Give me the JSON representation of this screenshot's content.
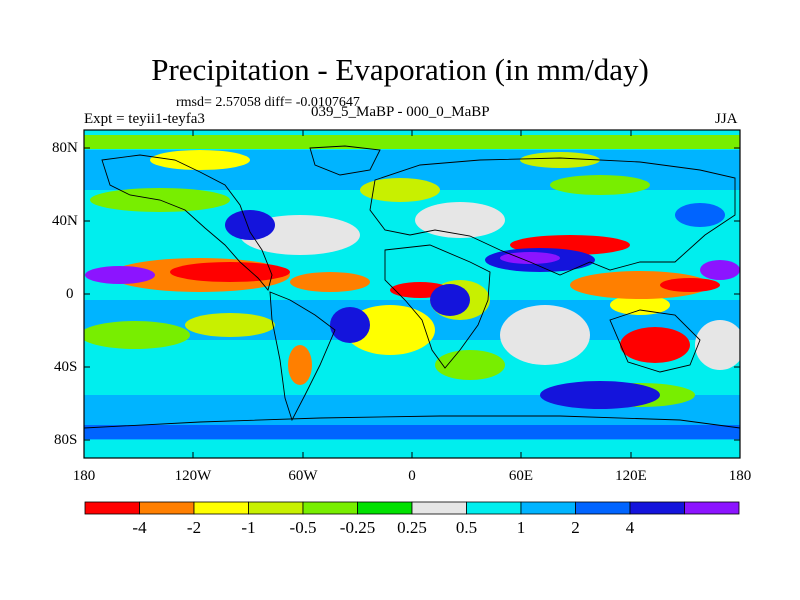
{
  "figure": {
    "title": "Precipitation - Evaporation (in mm/day)",
    "stats": "rmsd= 2.57058 diff= -0.0107647",
    "experiment": "Expt = teyii1-teyfa3",
    "period": "039_5_MaBP - 000_0_MaBP",
    "season": "JJA"
  },
  "axes": {
    "lat_ticks": [
      "80N",
      "40N",
      "0",
      "40S",
      "80S"
    ],
    "lon_ticks": [
      "180",
      "120W",
      "60W",
      "0",
      "60E",
      "120E",
      "180"
    ]
  },
  "colorbar": {
    "labels": [
      "-4",
      "-2",
      "-1",
      "-0.5",
      "-0.25",
      "0.25",
      "0.5",
      "1",
      "2",
      "4"
    ],
    "colors": [
      "#ff0000",
      "#ff7f00",
      "#ffff00",
      "#c8f000",
      "#78ee00",
      "#00e100",
      "#e6e6e6",
      "#00eeee",
      "#00b4ff",
      "#0064ff",
      "#1414dc",
      "#8c14ff"
    ]
  },
  "chart_data": {
    "type": "heatmap",
    "title": "Precipitation - Evaporation (in mm/day)",
    "variable": "Precipitation - Evaporation",
    "units": "mm/day",
    "season": "JJA",
    "comparison": "039_5_MaBP - 000_0_MaBP",
    "rmsd": 2.57058,
    "diff": -0.0107647,
    "x_range": [
      -180,
      180
    ],
    "y_range": [
      -90,
      90
    ],
    "contour_levels": [
      -4,
      -2,
      -1,
      -0.5,
      -0.25,
      0.25,
      0.5,
      1,
      2,
      4
    ]
  }
}
